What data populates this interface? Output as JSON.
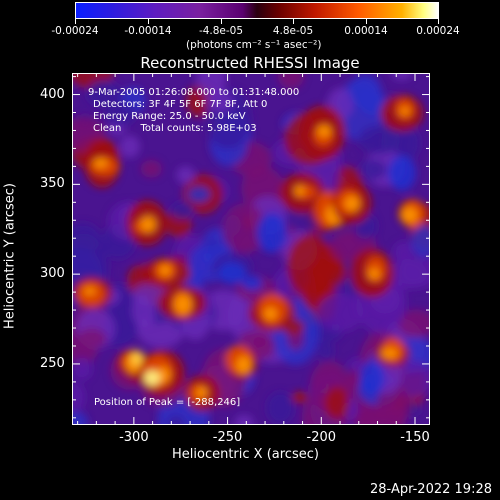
{
  "colorbar": {
    "tick_labels": [
      "-0.00024",
      "-0.00014",
      "-4.8e-05",
      "4.8e-05",
      "0.00014",
      "0.00024"
    ],
    "units_label": "(photons cm⁻² s⁻¹ asec⁻²)"
  },
  "title": "Reconstructed RHESSI Image",
  "info": {
    "time_range": "9-Mar-2005 01:26:08.000 to 01:31:48.000",
    "detectors": "Detectors: 3F 4F 5F 6F 7F 8F, Att 0",
    "energy": "Energy Range: 25.0 - 50.0 keV",
    "method_counts": "Clean      Total counts: 5.98E+03",
    "peak": "Position of Peak = [-288,246]"
  },
  "axes": {
    "xlabel": "Heliocentric X (arcsec)",
    "ylabel": "Heliocentric Y (arcsec)",
    "xticks": [
      "-300",
      "-250",
      "-200",
      "-150"
    ],
    "yticks": [
      "400",
      "350",
      "300",
      "250"
    ],
    "x_tick_values": [
      -300,
      -250,
      -200,
      -150
    ],
    "y_tick_values": [
      400,
      350,
      300,
      250
    ],
    "xlim": [
      -333,
      -142
    ],
    "ylim": [
      216,
      412
    ]
  },
  "timestamp": "28-Apr-2022 19:28"
}
